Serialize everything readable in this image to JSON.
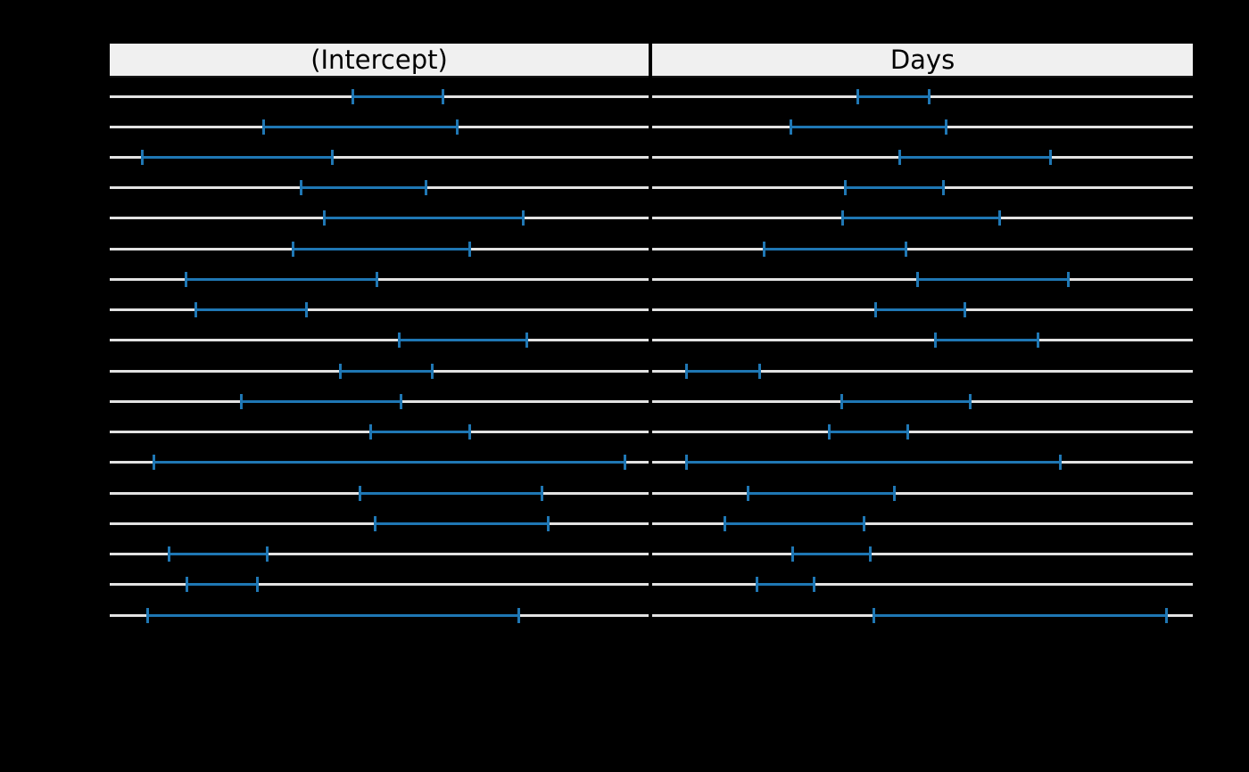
{
  "chart_data": {
    "type": "interval",
    "description": "Two-panel trellis plot of per-group confidence intervals; 18 rows, one horizontal reference line per row with a blue interval segment capped at both ends. Axis tick labels and row labels are not visible (rendered black on black).",
    "rows": 18,
    "units": "interval endpoints as percent of panel width, rows listed top to bottom",
    "panels": [
      {
        "label": "(Intercept)",
        "intervals": [
          [
            44.9,
            61.1
          ],
          [
            28.3,
            63.7
          ],
          [
            5.8,
            40.6
          ],
          [
            35.3,
            57.9
          ],
          [
            39.6,
            76.0
          ],
          [
            33.8,
            66.1
          ],
          [
            13.9,
            48.8
          ],
          [
            15.7,
            35.8
          ],
          [
            53.5,
            76.7
          ],
          [
            42.5,
            59.1
          ],
          [
            24.2,
            53.3
          ],
          [
            48.2,
            66.1
          ],
          [
            7.9,
            94.9
          ],
          [
            46.2,
            79.5
          ],
          [
            49.0,
            80.6
          ],
          [
            10.8,
            28.5
          ],
          [
            14.1,
            26.7
          ],
          [
            6.8,
            75.2
          ]
        ]
      },
      {
        "label": "Days",
        "intervals": [
          [
            37.8,
            50.5
          ],
          [
            25.4,
            53.6
          ],
          [
            45.5,
            72.9
          ],
          [
            35.5,
            53.1
          ],
          [
            35.0,
            63.5
          ],
          [
            20.5,
            46.2
          ],
          [
            48.8,
            76.2
          ],
          [
            41.1,
            57.1
          ],
          [
            52.1,
            70.6
          ],
          [
            6.1,
            19.1
          ],
          [
            34.8,
            58.1
          ],
          [
            32.5,
            46.5
          ],
          [
            6.1,
            74.8
          ],
          [
            17.5,
            44.1
          ],
          [
            13.2,
            38.4
          ],
          [
            25.7,
            39.6
          ],
          [
            19.1,
            29.2
          ],
          [
            40.8,
            94.4
          ]
        ]
      }
    ],
    "colors": {
      "background": "#000000",
      "interval": "#1f77b4",
      "row_line": "#e2e2e2",
      "strip_bg": "#f0f0f0",
      "strip_text": "#000000"
    },
    "layout": {
      "legend": "none",
      "grid": "off",
      "axis_labels_visible": false
    }
  }
}
